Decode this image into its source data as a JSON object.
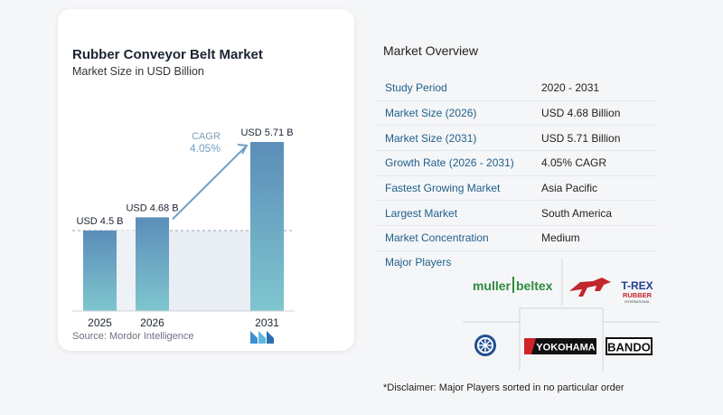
{
  "chart": {
    "title": "Rubber Conveyor Belt Market",
    "subtitle": "Market Size in USD Billion",
    "source": "Source:  Mordor Intelligence"
  },
  "chart_data": {
    "type": "bar",
    "categories": [
      "2025",
      "2026",
      "2031"
    ],
    "values": [
      4.5,
      4.68,
      5.71
    ],
    "value_labels": [
      "USD 4.5 B",
      "USD 4.68 B",
      "USD 5.71 B"
    ],
    "annotation": {
      "label": "CAGR",
      "value": "4.05%"
    },
    "reference_line_value": 4.5,
    "title": "Rubber Conveyor Belt Market",
    "ylabel": "Market Size in USD Billion",
    "colors": {
      "bar_top": "#5b8db8",
      "bar_bottom": "#7fc6cf",
      "shade": "#e8eef4",
      "arrow": "#6fa0c4"
    }
  },
  "overview": {
    "title": "Market Overview",
    "rows": [
      {
        "label": "Study Period",
        "value": "2020 - 2031"
      },
      {
        "label": "Market Size (2026)",
        "value": "USD 4.68 Billion"
      },
      {
        "label": "Market Size (2031)",
        "value": "USD 5.71 Billion"
      },
      {
        "label": "Growth Rate (2026 - 2031)",
        "value": "4.05% CAGR"
      },
      {
        "label": "Fastest Growing Market",
        "value": "Asia Pacific"
      },
      {
        "label": "Largest Market",
        "value": "South America"
      },
      {
        "label": "Market Concentration",
        "value": "Medium"
      }
    ]
  },
  "players": {
    "title": "Major Players",
    "logos": {
      "muller_left": "muller",
      "muller_right": "beltex",
      "trex_main": "T-REX",
      "trex_sub": "RUBBER",
      "trex_tag": "INTERNATIONAL",
      "yokohama": "YOKOHAMA",
      "bando": "BANDO"
    }
  },
  "disclaimer": "*Disclaimer: Major Players sorted in no particular order"
}
